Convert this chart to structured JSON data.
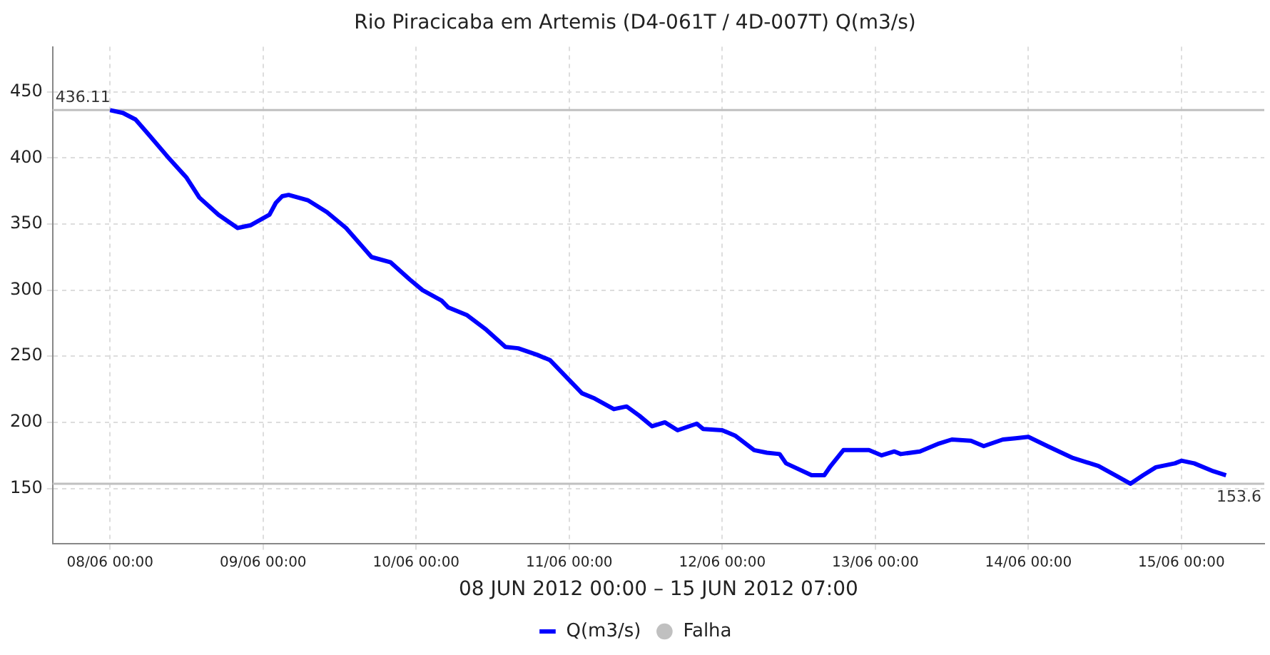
{
  "chart_data": {
    "type": "line",
    "title": "Rio Piracicaba em Artemis (D4-061T / 4D-007T) Q(m3/s)",
    "xlabel": "08 JUN 2012 00:00 – 15 JUN 2012 07:00",
    "xlim": [
      "2012-06-07T15:00",
      "2012-06-15T13:00"
    ],
    "xticks": [
      {
        "value": "2012-06-08T00:00",
        "label": "08/06 00:00"
      },
      {
        "value": "2012-06-09T00:00",
        "label": "09/06 00:00"
      },
      {
        "value": "2012-06-10T00:00",
        "label": "10/06 00:00"
      },
      {
        "value": "2012-06-11T00:00",
        "label": "11/06 00:00"
      },
      {
        "value": "2012-06-12T00:00",
        "label": "12/06 00:00"
      },
      {
        "value": "2012-06-13T00:00",
        "label": "13/06 00:00"
      },
      {
        "value": "2012-06-14T00:00",
        "label": "14/06 00:00"
      },
      {
        "value": "2012-06-15T00:00",
        "label": "15/06 00:00"
      }
    ],
    "ylim": [
      108,
      484
    ],
    "yticks": [
      150,
      200,
      250,
      300,
      350,
      400,
      450
    ],
    "grid": true,
    "legend": "bottom",
    "line_style": "solid",
    "ref_lines": [
      {
        "axis": "y",
        "value": 436.11,
        "label": "436.11",
        "color": "#c0c0c0"
      },
      {
        "axis": "y",
        "value": 153.6,
        "label": "153.6",
        "color": "#c0c0c0"
      }
    ],
    "series": [
      {
        "name": "Q(m3/s)",
        "color": "#0000ff",
        "marker": "none",
        "x": [
          "2012-06-08T00:00",
          "2012-06-08T02:00",
          "2012-06-08T04:00",
          "2012-06-08T06:00",
          "2012-06-08T09:00",
          "2012-06-08T12:00",
          "2012-06-08T14:00",
          "2012-06-08T17:00",
          "2012-06-08T20:00",
          "2012-06-08T22:00",
          "2012-06-09T01:00",
          "2012-06-09T02:00",
          "2012-06-09T03:00",
          "2012-06-09T04:00",
          "2012-06-09T07:00",
          "2012-06-09T10:00",
          "2012-06-09T13:00",
          "2012-06-09T17:00",
          "2012-06-09T20:00",
          "2012-06-09T23:00",
          "2012-06-10T01:00",
          "2012-06-10T04:00",
          "2012-06-10T05:00",
          "2012-06-10T08:00",
          "2012-06-10T11:00",
          "2012-06-10T14:00",
          "2012-06-10T16:00",
          "2012-06-10T19:00",
          "2012-06-10T21:00",
          "2012-06-11T00:00",
          "2012-06-11T02:00",
          "2012-06-11T04:00",
          "2012-06-11T07:00",
          "2012-06-11T09:00",
          "2012-06-11T11:00",
          "2012-06-11T13:00",
          "2012-06-11T15:00",
          "2012-06-11T17:00",
          "2012-06-11T20:00",
          "2012-06-11T21:00",
          "2012-06-12T00:00",
          "2012-06-12T02:00",
          "2012-06-12T05:00",
          "2012-06-12T07:00",
          "2012-06-12T09:00",
          "2012-06-12T10:00",
          "2012-06-12T14:00",
          "2012-06-12T16:00",
          "2012-06-12T17:00",
          "2012-06-12T19:00",
          "2012-06-12T23:00",
          "2012-06-13T01:00",
          "2012-06-13T03:00",
          "2012-06-13T04:00",
          "2012-06-13T07:00",
          "2012-06-13T10:00",
          "2012-06-13T12:00",
          "2012-06-13T15:00",
          "2012-06-13T17:00",
          "2012-06-13T20:00",
          "2012-06-13T22:00",
          "2012-06-14T00:00",
          "2012-06-14T03:00",
          "2012-06-14T07:00",
          "2012-06-14T11:00",
          "2012-06-14T14:00",
          "2012-06-14T16:00",
          "2012-06-14T18:00",
          "2012-06-14T20:00",
          "2012-06-14T23:00",
          "2012-06-15T00:00",
          "2012-06-15T02:00",
          "2012-06-15T05:00",
          "2012-06-15T07:00"
        ],
        "values": [
          436.11,
          434,
          429,
          418,
          401,
          385,
          370,
          357,
          347,
          349,
          357,
          366,
          371,
          372,
          368,
          359,
          347,
          325,
          321,
          308,
          300,
          292,
          287,
          281,
          270,
          257,
          256,
          251,
          247,
          232,
          222,
          218,
          210,
          212,
          205,
          197,
          200,
          194,
          199,
          195,
          194,
          190,
          179,
          177,
          176,
          169,
          160,
          160,
          167,
          179,
          179,
          175,
          178,
          176,
          178,
          184,
          187,
          186,
          182,
          187,
          188,
          189,
          182,
          173,
          167,
          159,
          153.6,
          160,
          166,
          169,
          171,
          169,
          163,
          160
        ]
      },
      {
        "name": "Falha",
        "color": "#c0c0c0",
        "type": "scatter",
        "marker": "circle"
      }
    ]
  }
}
